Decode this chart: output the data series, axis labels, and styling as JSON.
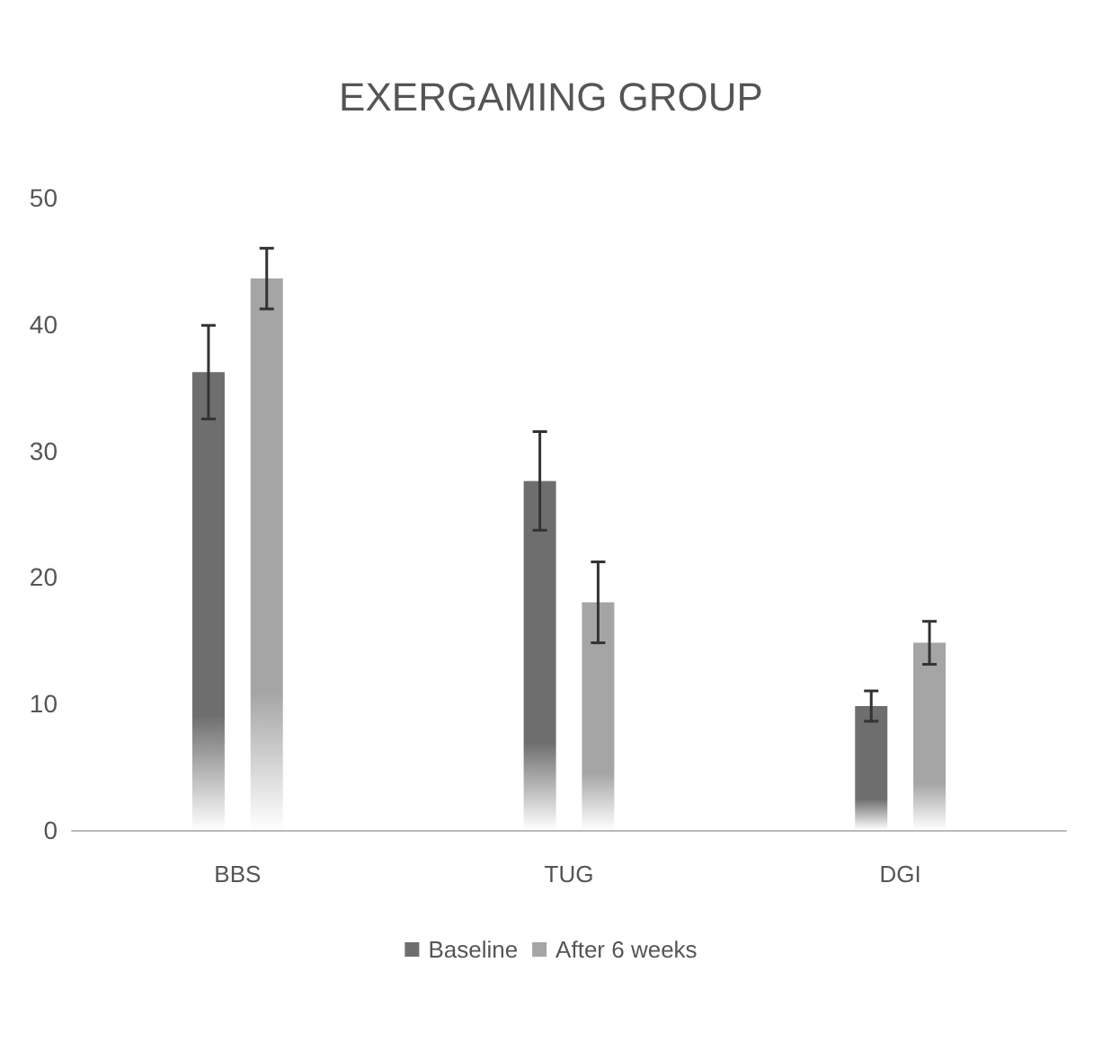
{
  "chart_data": {
    "type": "bar",
    "title": "EXERGAMING GROUP",
    "categories": [
      "BBS",
      "TUG",
      "DGI"
    ],
    "series": [
      {
        "name": "Baseline",
        "color": "#6e6e6e",
        "values": [
          36.2,
          27.6,
          9.8
        ],
        "errors": [
          3.7,
          3.9,
          1.2
        ]
      },
      {
        "name": "After 6 weeks",
        "color": "#a5a5a5",
        "values": [
          43.6,
          18.0,
          14.8
        ],
        "errors": [
          2.4,
          3.2,
          1.7
        ]
      }
    ],
    "ylim": [
      0,
      50
    ],
    "yticks": [
      0,
      10,
      20,
      30,
      40,
      50
    ],
    "grid": false,
    "legend": "bottom"
  }
}
